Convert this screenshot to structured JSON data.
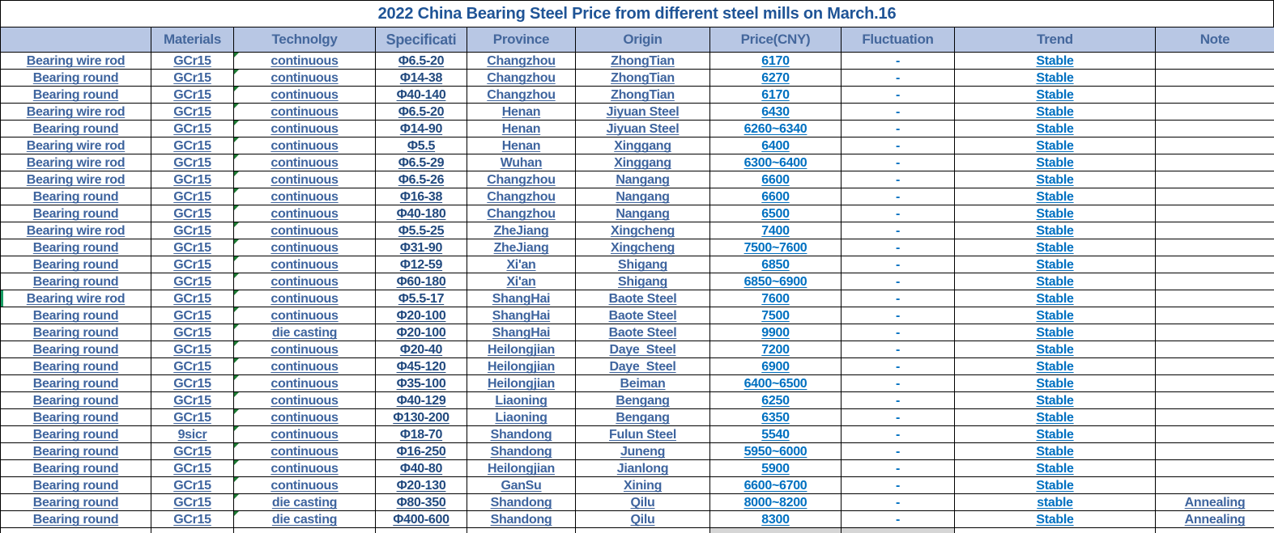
{
  "title": "2022 China Bearing Steel Price from different steel mills on  March.16",
  "table": {
    "columns": [
      "",
      "Materials",
      "Technolgy",
      "Specificati",
      "Province",
      "Origin",
      "Price(CNY)",
      "Fluctuation",
      "Trend",
      "Note"
    ],
    "column_keys": [
      "product",
      "materials",
      "technology",
      "specification",
      "province",
      "origin",
      "price",
      "fluctuation",
      "trend",
      "note"
    ],
    "green_marker_row_index": 14,
    "rows": [
      [
        "Bearing wire rod",
        "GCr15",
        "continuous",
        "Φ6.5-20",
        "Changzhou",
        "ZhongTian",
        "6170",
        "-",
        "Stable",
        ""
      ],
      [
        "Bearing round",
        "GCr15",
        "continuous",
        "Φ14-38",
        "Changzhou",
        "ZhongTian",
        "6270",
        "-",
        "Stable",
        ""
      ],
      [
        "Bearing round",
        "GCr15",
        "continuous",
        "Φ40-140",
        "Changzhou",
        "ZhongTian",
        "6170",
        "-",
        "Stable",
        ""
      ],
      [
        "Bearing wire rod",
        "GCr15",
        "continuous",
        "Φ6.5-20",
        "Henan",
        "Jiyuan Steel",
        "6430",
        "-",
        "Stable",
        ""
      ],
      [
        "Bearing round",
        "GCr15",
        "continuous",
        "Φ14-90",
        "Henan",
        "Jiyuan Steel",
        "6260~6340",
        "-",
        "Stable",
        ""
      ],
      [
        "Bearing wire rod",
        "GCr15",
        "continuous",
        "Φ5.5",
        "Henan",
        "Xinggang",
        "6400",
        "-",
        "Stable",
        ""
      ],
      [
        "Bearing wire rod",
        "GCr15",
        "continuous",
        "Φ6.5-29",
        "Wuhan",
        "Xinggang",
        "6300~6400",
        "-",
        "Stable",
        ""
      ],
      [
        "Bearing wire rod",
        "GCr15",
        "continuous",
        "Φ6.5-26",
        "Changzhou",
        "Nangang",
        "6600",
        "-",
        "Stable",
        ""
      ],
      [
        "Bearing round",
        "GCr15",
        "continuous",
        "Φ16-38",
        "Changzhou",
        "Nangang",
        "6600",
        "-",
        "Stable",
        ""
      ],
      [
        "Bearing round",
        "GCr15",
        "continuous",
        "Φ40-180",
        "Changzhou",
        "Nangang",
        "6500",
        "-",
        "Stable",
        ""
      ],
      [
        "Bearing wire rod",
        "GCr15",
        "continuous",
        "Φ5.5-25",
        "ZheJiang",
        "Xingcheng",
        "7400",
        "-",
        "Stable",
        ""
      ],
      [
        "Bearing round",
        "GCr15",
        "continuous",
        "Φ31-90",
        "ZheJiang",
        "Xingcheng",
        "7500~7600",
        "-",
        "Stable",
        ""
      ],
      [
        "Bearing round",
        "GCr15",
        "continuous",
        "Φ12-59",
        "Xi'an",
        "Shigang",
        "6850",
        "-",
        "Stable",
        ""
      ],
      [
        "Bearing round",
        "GCr15",
        "continuous",
        "Φ60-180",
        "Xi'an",
        "Shigang",
        "6850~6900",
        "-",
        "Stable",
        ""
      ],
      [
        "Bearing wire rod",
        "GCr15",
        "continuous",
        "Φ5.5-17",
        "ShangHai",
        "Baote Steel",
        "7600",
        "-",
        "Stable",
        ""
      ],
      [
        "Bearing round",
        "GCr15",
        "continuous",
        "Φ20-100",
        "ShangHai",
        "Baote Steel",
        "7500",
        "-",
        "Stable",
        ""
      ],
      [
        "Bearing round",
        "GCr15",
        "die casting",
        "Φ20-100",
        "ShangHai",
        "Baote Steel",
        "9900",
        "-",
        "Stable",
        ""
      ],
      [
        "Bearing round",
        "GCr15",
        "continuous",
        "Φ20-40",
        "Heilongjian",
        "Daye  Steel",
        "7200",
        "-",
        "Stable",
        ""
      ],
      [
        "Bearing round",
        "GCr15",
        "continuous",
        "Φ45-120",
        "Heilongjian",
        "Daye  Steel",
        "6900",
        "-",
        "Stable",
        ""
      ],
      [
        "Bearing round",
        "GCr15",
        "continuous",
        "Φ35-100",
        "Heilongjian",
        "Beiman",
        "6400~6500",
        "-",
        "Stable",
        ""
      ],
      [
        "Bearing round",
        "GCr15",
        "continuous",
        "Φ40-129",
        "Liaoning",
        "Bengang",
        "6250",
        "-",
        "Stable",
        ""
      ],
      [
        "Bearing round",
        "GCr15",
        "continuous",
        "Φ130-200",
        "Liaoning",
        "Bengang",
        "6350",
        "-",
        "Stable",
        ""
      ],
      [
        "Bearing round",
        "9sicr",
        "continuous",
        "Φ18-70",
        "Shandong",
        "Fulun Steel",
        "5540",
        "-",
        "Stable",
        ""
      ],
      [
        "Bearing round",
        "GCr15",
        "continuous",
        "Φ16-250",
        "Shandong",
        "Juneng",
        "5950~6000",
        "-",
        "Stable",
        ""
      ],
      [
        "Bearing round",
        "GCr15",
        "continuous",
        "Φ40-80",
        "Heilongjian",
        "Jianlong",
        "5900",
        "-",
        "Stable",
        ""
      ],
      [
        "Bearing round",
        "GCr15",
        "continuous",
        "Φ20-130",
        "GanSu",
        "Xining",
        "6600~6700",
        "-",
        "Stable",
        ""
      ],
      [
        "Bearing round",
        "GCr15",
        "die casting",
        "Φ80-350",
        "Shandong",
        "Qilu",
        "8000~8200",
        "-",
        "stable",
        "Annealing"
      ],
      [
        "Bearing round",
        "GCr15",
        "die casting",
        "Φ400-600",
        "Shandong",
        "Qilu",
        "8300",
        "-",
        "Stable",
        "Annealing"
      ]
    ]
  },
  "colors": {
    "header_bg": "#B8C7E4",
    "title_text": "#1F5496",
    "header_text": "#44679C",
    "label_text": "#3E649E",
    "specification_text": "#21497E",
    "value_text": "#0070C0",
    "error_indicator_green": "#1E7B34",
    "partial_row_gray": "#D6D6D6"
  }
}
